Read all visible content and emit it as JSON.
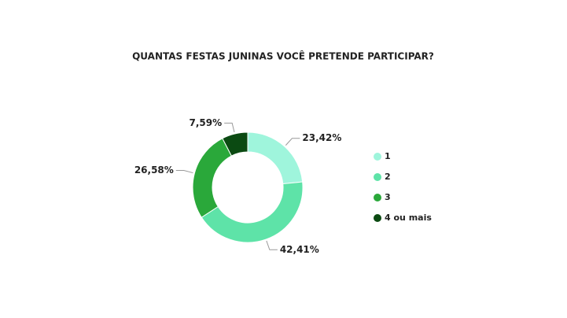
{
  "chart_data": {
    "type": "donut",
    "title": "QUANTAS FESTAS JUNINAS VOCÊ PRETENDE PARTICIPAR?",
    "categories": [
      "1",
      "2",
      "3",
      "4 ou mais"
    ],
    "values": [
      23.42,
      42.41,
      26.58,
      7.59
    ],
    "value_labels": [
      "23,42%",
      "42,41%",
      "26,58%",
      "7,59%"
    ],
    "colors": [
      "#9ff5dc",
      "#5ee3a8",
      "#2aa83a",
      "#0b4a12"
    ],
    "legend": "right"
  }
}
